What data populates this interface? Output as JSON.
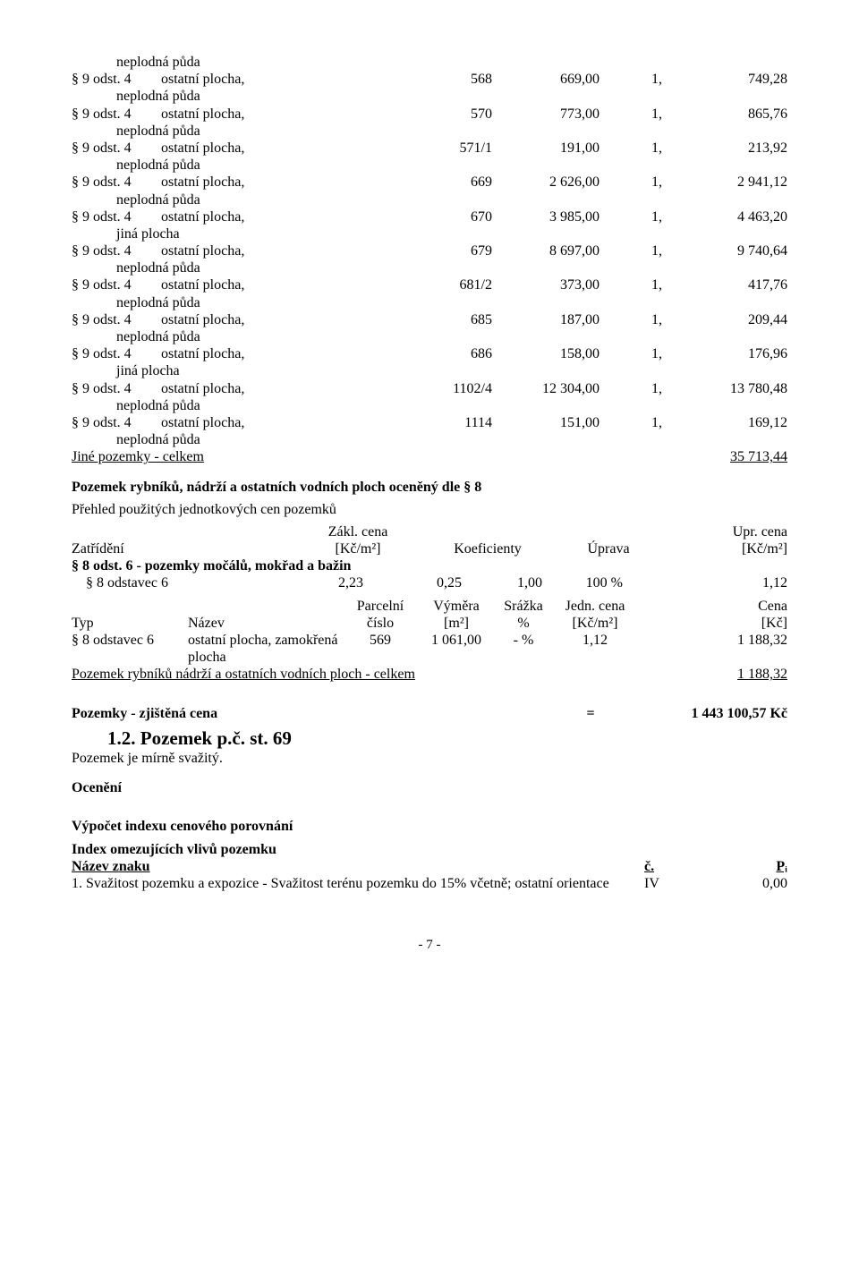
{
  "rows": [
    {
      "ref": "",
      "desc": "neplodná půda"
    },
    {
      "ref": "§ 9 odst. 4",
      "desc": "ostatní plocha, neplodná půda",
      "pc": "568",
      "v": "669,00",
      "m": "1,",
      "cena": "749,28"
    },
    {
      "ref": "§ 9 odst. 4",
      "desc": "ostatní plocha, neplodná půda",
      "pc": "570",
      "v": "773,00",
      "m": "1,",
      "cena": "865,76"
    },
    {
      "ref": "§ 9 odst. 4",
      "desc": "ostatní plocha, neplodná půda",
      "pc": "571/1",
      "v": "191,00",
      "m": "1,",
      "cena": "213,92"
    },
    {
      "ref": "§ 9 odst. 4",
      "desc": "ostatní plocha, neplodná půda",
      "pc": "669",
      "v": "2 626,00",
      "m": "1,",
      "cena": "2 941,12"
    },
    {
      "ref": "§ 9 odst. 4",
      "desc": "ostatní plocha, jiná plocha",
      "pc": "670",
      "v": "3 985,00",
      "m": "1,",
      "cena": "4 463,20"
    },
    {
      "ref": "§ 9 odst. 4",
      "desc": "ostatní plocha, neplodná půda",
      "pc": "679",
      "v": "8 697,00",
      "m": "1,",
      "cena": "9 740,64"
    },
    {
      "ref": "§ 9 odst. 4",
      "desc": "ostatní plocha, neplodná půda",
      "pc": "681/2",
      "v": "373,00",
      "m": "1,",
      "cena": "417,76"
    },
    {
      "ref": "§ 9 odst. 4",
      "desc": "ostatní plocha, neplodná půda",
      "pc": "685",
      "v": "187,00",
      "m": "1,",
      "cena": "209,44"
    },
    {
      "ref": "§ 9 odst. 4",
      "desc": "ostatní plocha, jiná plocha",
      "pc": "686",
      "v": "158,00",
      "m": "1,",
      "cena": "176,96"
    },
    {
      "ref": "§ 9 odst. 4",
      "desc": "ostatní plocha, neplodná půda",
      "pc": "1102/4",
      "v": "12 304,00",
      "m": "1,",
      "cena": "13 780,48"
    },
    {
      "ref": "§ 9 odst. 4",
      "desc": "ostatní plocha, neplodná půda",
      "pc": "1114",
      "v": "151,00",
      "m": "1,",
      "cena": "169,12"
    }
  ],
  "total1_label": "Jiné pozemky - celkem",
  "total1_value": "35 713,44",
  "sec2_title": "Pozemek rybníků, nádrží a ostatních vodních ploch oceněný dle § 8",
  "sec2_sub": "Přehled použitých jednotkových cen pozemků",
  "hdr2": {
    "a": "Zatřídění",
    "b1": "Zákl. cena",
    "b2": "[Kč/m²]",
    "c": "Koeficienty",
    "d": "Úprava",
    "e1": "Upr. cena",
    "e2": "[Kč/m²]"
  },
  "sec2_cat": "§ 8 odst. 6 - pozemky močálů, mokřad a bažin",
  "sec2_line": {
    "a": "§ 8 odstavec 6",
    "b": "2,23",
    "c": "0,25",
    "d": "1,00",
    "e": "100 %",
    "f": "1,12"
  },
  "hdr3": {
    "typ": "Typ",
    "nazev": "Název",
    "p1": "Parcelní",
    "p2": "číslo",
    "v1": "Výměra",
    "v2": "[m²]",
    "s1": "Srážka",
    "s2": "%",
    "j1": "Jedn. cena",
    "j2": "[Kč/m²]",
    "c1": "Cena",
    "c2": "[Kč]"
  },
  "sec3_row": {
    "typ": "§ 8 odstavec 6",
    "nazev": "ostatní plocha, zamokřená plocha",
    "pc": "569",
    "v": "1 061,00",
    "s": "-   %",
    "j": "1,12",
    "c": "1 188,32"
  },
  "total2_label": "Pozemek rybníků nádrží a ostatních vodních ploch - celkem",
  "total2_value": "1 188,32",
  "price_label": "Pozemky - zjištěná cena",
  "price_eq": "=",
  "price_value": "1 443 100,57 Kč",
  "sec4_title": "1.2. Pozemek p.č. st. 69",
  "sec4_text": "Pozemek je mírně svažitý.",
  "ocen": "Ocenění",
  "calc_title": "Výpočet indexu cenového porovnání",
  "calc_sub": "Index omezujících vlivů pozemku",
  "znak_hdr": {
    "a": "Název znaku",
    "b": "č.",
    "c": "Pᵢ"
  },
  "znak1": {
    "text": "1. Svažitost pozemku a expozice - Svažitost terénu pozemku do 15% včetně; ostatní orientace",
    "c": "IV",
    "p": "0,00"
  },
  "page": "- 7 -"
}
